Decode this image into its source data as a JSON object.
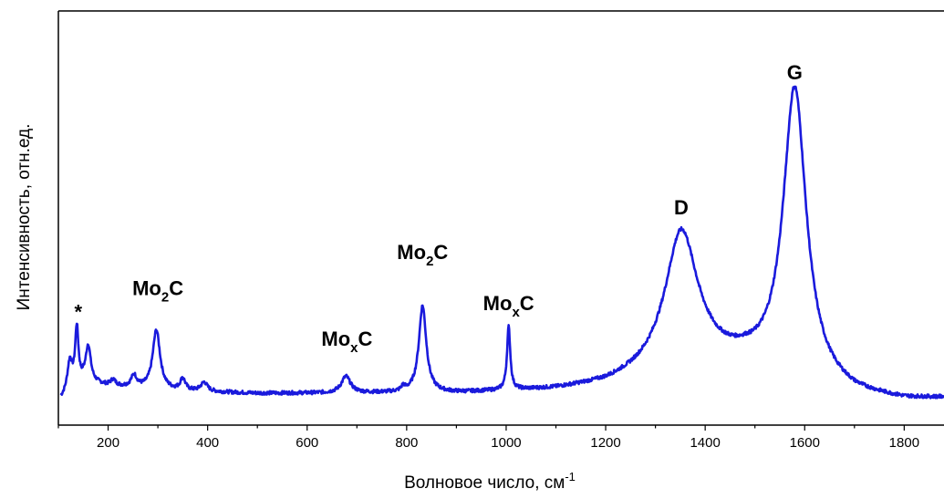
{
  "chart_data": {
    "type": "line",
    "xlabel": "Волновое число, см",
    "xlabel_sup": "-1",
    "ylabel": "Интенсивность, отн.ед.",
    "xlim": [
      100,
      1880
    ],
    "ylim": [
      0,
      1
    ],
    "xticks": [
      200,
      400,
      600,
      800,
      1000,
      1200,
      1400,
      1600,
      1800
    ],
    "y_tick_labels": false,
    "grid": false,
    "line_color": "#1a1adc",
    "baseline": [
      [
        105,
        0.03
      ],
      [
        150,
        0.09
      ],
      [
        200,
        0.075
      ],
      [
        300,
        0.06
      ],
      [
        400,
        0.055
      ],
      [
        500,
        0.05
      ],
      [
        600,
        0.05
      ],
      [
        700,
        0.05
      ],
      [
        800,
        0.05
      ],
      [
        900,
        0.05
      ],
      [
        1000,
        0.055
      ],
      [
        1100,
        0.06
      ],
      [
        1200,
        0.075
      ],
      [
        1300,
        0.11
      ],
      [
        1400,
        0.14
      ],
      [
        1480,
        0.14
      ],
      [
        1700,
        0.04
      ],
      [
        1800,
        0.025
      ],
      [
        1880,
        0.03
      ]
    ],
    "peaks": [
      {
        "x": 123,
        "h": 0.1,
        "w": 6
      },
      {
        "x": 137,
        "h": 0.19,
        "w": 4
      },
      {
        "x": 160,
        "h": 0.12,
        "w": 6
      },
      {
        "x": 210,
        "h": 0.02,
        "w": 6
      },
      {
        "x": 252,
        "h": 0.04,
        "w": 7
      },
      {
        "x": 297,
        "h": 0.2,
        "w": 9
      },
      {
        "x": 350,
        "h": 0.04,
        "w": 6
      },
      {
        "x": 393,
        "h": 0.03,
        "w": 8
      },
      {
        "x": 678,
        "h": 0.055,
        "w": 11
      },
      {
        "x": 793,
        "h": 0.015,
        "w": 4
      },
      {
        "x": 832,
        "h": 0.29,
        "w": 9
      },
      {
        "x": 1005,
        "h": 0.21,
        "w": 4
      },
      {
        "x": 1352,
        "h": 0.46,
        "w": 40
      },
      {
        "x": 1580,
        "h": 0.97,
        "w": 28
      }
    ],
    "annotations": [
      {
        "id": "star",
        "text": "*",
        "x": 140,
        "y": 0.3
      },
      {
        "id": "mo2c-300",
        "text": "Mo",
        "sub": "2",
        "tail": "C",
        "x": 300,
        "y": 0.38
      },
      {
        "id": "moxc-680",
        "text": "Mo",
        "sub": "x",
        "tail": "C",
        "x": 680,
        "y": 0.21
      },
      {
        "id": "mo2c-832",
        "text": "Mo",
        "sub": "2",
        "tail": "C",
        "x": 832,
        "y": 0.5
      },
      {
        "id": "moxc-1005",
        "text": "Mo",
        "sub": "x",
        "tail": "C",
        "x": 1005,
        "y": 0.33
      },
      {
        "id": "d-band",
        "text": "D",
        "x": 1352,
        "y": 0.65
      },
      {
        "id": "g-band",
        "text": "G",
        "x": 1580,
        "y": 1.1
      }
    ]
  }
}
